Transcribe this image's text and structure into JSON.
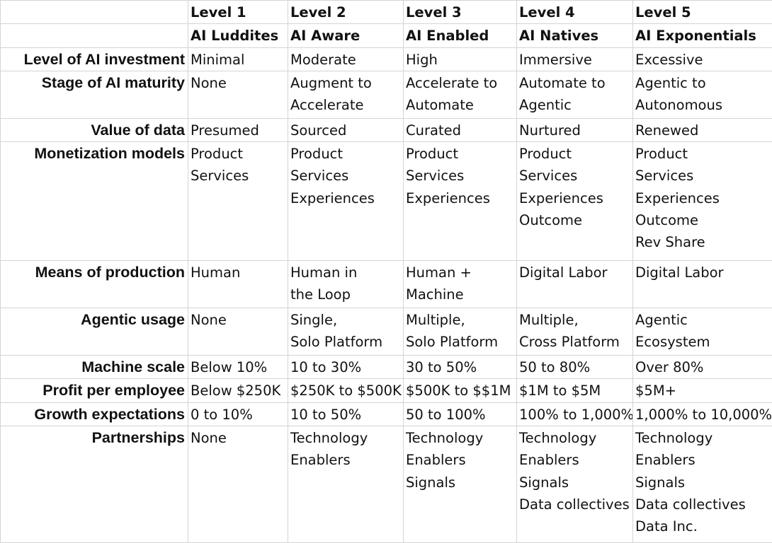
{
  "header": {
    "levels": [
      "Level 1",
      "Level 2",
      "Level 3",
      "Level 4",
      "Level 5"
    ],
    "names": [
      "AI Luddites",
      "AI Aware",
      "AI Enabled",
      "AI Natives",
      "AI Exponentials"
    ]
  },
  "rows": [
    {
      "label": "Level of AI investment",
      "cells": [
        [
          "Minimal"
        ],
        [
          "Moderate"
        ],
        [
          "High"
        ],
        [
          "Immersive"
        ],
        [
          "Excessive"
        ]
      ]
    },
    {
      "label": "Stage of AI maturity",
      "cells": [
        [
          "None"
        ],
        [
          "Augment to",
          "Accelerate"
        ],
        [
          "Accelerate to",
          "Automate"
        ],
        [
          "Automate to",
          "Agentic"
        ],
        [
          "Agentic to",
          "Autonomous"
        ]
      ]
    },
    {
      "label": "Value of data",
      "cells": [
        [
          "Presumed"
        ],
        [
          "Sourced"
        ],
        [
          "Curated"
        ],
        [
          "Nurtured"
        ],
        [
          "Renewed"
        ]
      ]
    },
    {
      "label": "Monetization models",
      "cells": [
        [
          "Product",
          "Services"
        ],
        [
          "Product",
          "Services",
          "Experiences"
        ],
        [
          "Product",
          "Services",
          "Experiences"
        ],
        [
          "Product",
          "Services",
          "Experiences",
          "Outcome"
        ],
        [
          "Product",
          "Services",
          "Experiences",
          "Outcome",
          "Rev Share"
        ]
      ]
    },
    {
      "label": "Means of production",
      "cells": [
        [
          "Human"
        ],
        [
          "Human in",
          "the Loop"
        ],
        [
          "Human +",
          "Machine"
        ],
        [
          "Digital Labor"
        ],
        [
          "Digital Labor"
        ]
      ]
    },
    {
      "label": "Agentic usage",
      "cells": [
        [
          "None"
        ],
        [
          "Single,",
          "Solo Platform"
        ],
        [
          "Multiple,",
          "Solo Platform"
        ],
        [
          "Multiple,",
          "Cross Platform"
        ],
        [
          "Agentic",
          "Ecosystem"
        ]
      ]
    },
    {
      "label": "Machine scale",
      "cells": [
        [
          "Below 10%"
        ],
        [
          "10 to 30%"
        ],
        [
          "30 to 50%"
        ],
        [
          "50 to 80%"
        ],
        [
          "Over 80%"
        ]
      ]
    },
    {
      "label": "Profit per employee",
      "cells": [
        [
          "Below $250K"
        ],
        [
          "$250K to $500K"
        ],
        [
          "$500K to $$1M"
        ],
        [
          "$1M to $5M"
        ],
        [
          "$5M+"
        ]
      ]
    },
    {
      "label": "Growth expectations",
      "cells": [
        [
          "0 to 10%"
        ],
        [
          "10 to 50%"
        ],
        [
          "50 to 100%"
        ],
        [
          "100% to 1,000%"
        ],
        [
          "1,000% to 10,000%"
        ]
      ]
    },
    {
      "label": "Partnerships",
      "cells": [
        [
          "None"
        ],
        [
          "Technology",
          "Enablers"
        ],
        [
          "Technology",
          "Enablers",
          "Signals"
        ],
        [
          "Technology",
          "Enablers",
          "Signals",
          "Data collectives"
        ],
        [
          "Technology",
          "Enablers",
          "Signals",
          "Data collectives",
          "Data Inc."
        ]
      ]
    }
  ]
}
